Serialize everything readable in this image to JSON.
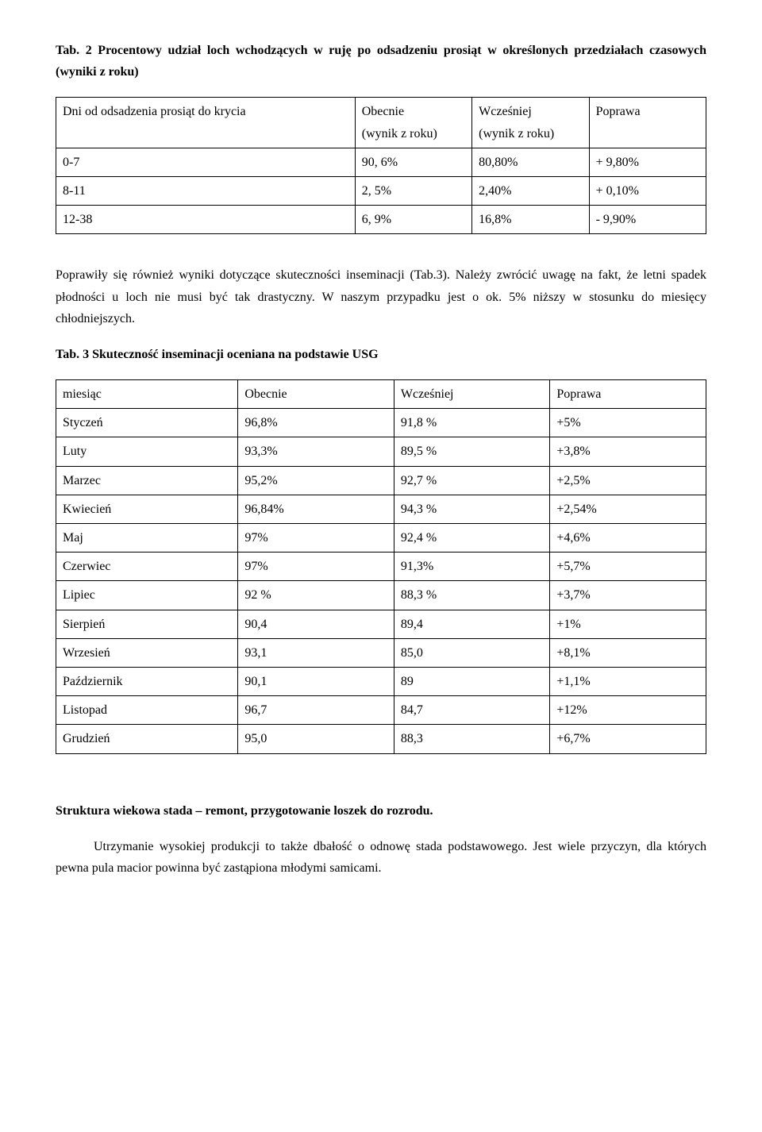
{
  "tab2": {
    "title": "Tab. 2 Procentowy udział loch wchodzących w ruję po odsadzeniu prosiąt w określonych przedziałach czasowych (wyniki z roku)",
    "header": {
      "c1": "Dni od odsadzenia prosiąt do krycia",
      "c2a": "Obecnie",
      "c2b": "(wynik z roku)",
      "c3a": "Wcześniej",
      "c3b": "(wynik z roku)",
      "c4": "Poprawa"
    },
    "rows": [
      [
        "0-7",
        "90, 6%",
        "80,80%",
        "+ 9,80%"
      ],
      [
        "8-11",
        "2, 5%",
        "2,40%",
        "+ 0,10%"
      ],
      [
        "12-38",
        "6, 9%",
        "16,8%",
        "- 9,90%"
      ]
    ]
  },
  "para_after_tab2": "Poprawiły się również wyniki dotyczące skuteczności inseminacji (Tab.3). Należy zwrócić uwagę na fakt, że letni spadek płodności u loch nie musi być tak drastyczny. W naszym przypadku jest o ok. 5% niższy w stosunku do miesięcy chłodniejszych.",
  "tab3": {
    "title": "Tab. 3 Skuteczność inseminacji oceniana na podstawie USG",
    "header": [
      "miesiąc",
      "Obecnie",
      "Wcześniej",
      "Poprawa"
    ],
    "rows": [
      [
        "Styczeń",
        "96,8%",
        "91,8 %",
        "+5%"
      ],
      [
        "Luty",
        "93,3%",
        "89,5 %",
        "+3,8%"
      ],
      [
        "Marzec",
        "95,2%",
        "92,7 %",
        "+2,5%"
      ],
      [
        "Kwiecień",
        "96,84%",
        "94,3 %",
        "+2,54%"
      ],
      [
        "Maj",
        "97%",
        "92,4 %",
        "+4,6%"
      ],
      [
        "Czerwiec",
        "97%",
        "91,3%",
        "+5,7%"
      ],
      [
        "Lipiec",
        "92 %",
        "88,3 %",
        "+3,7%"
      ],
      [
        "Sierpień",
        "90,4",
        "89,4",
        "+1%"
      ],
      [
        "Wrzesień",
        "93,1",
        "85,0",
        "+8,1%"
      ],
      [
        "Październik",
        "90,1",
        "89",
        "+1,1%"
      ],
      [
        "Listopad",
        "96,7",
        "84,7",
        "+12%"
      ],
      [
        "Grudzień",
        "95,0",
        "88,3",
        "+6,7%"
      ]
    ]
  },
  "section_heading": "Struktura wiekowa stada – remont, przygotowanie loszek do rozrodu.",
  "closing_para": "Utrzymanie wysokiej produkcji to także dbałość o odnowę stada podstawowego.  Jest wiele przyczyn, dla których pewna pula macior powinna być zastąpiona młodymi samicami."
}
